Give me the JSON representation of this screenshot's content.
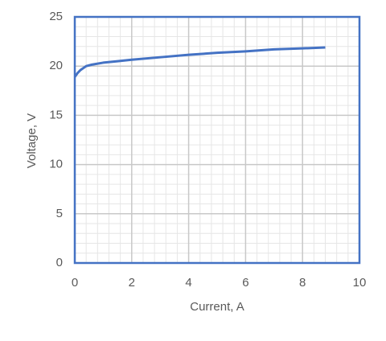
{
  "chart_data": {
    "type": "line",
    "x_label": "Current, A",
    "y_label": "Voltage, V",
    "x": [
      0,
      0.1,
      0.2,
      0.4,
      0.6,
      1,
      1.5,
      2,
      3,
      4,
      5,
      6,
      7,
      8,
      8.8
    ],
    "series": [
      {
        "name": "Voltage",
        "color": "#4472c4",
        "values": [
          18.9,
          19.3,
          19.6,
          20.0,
          20.15,
          20.35,
          20.5,
          20.65,
          20.9,
          21.15,
          21.35,
          21.5,
          21.7,
          21.8,
          21.9
        ]
      }
    ],
    "xlim": [
      0,
      10
    ],
    "xticks": [
      0,
      2,
      4,
      6,
      8,
      10
    ],
    "ylim": [
      0,
      25
    ],
    "yticks": [
      0,
      5,
      10,
      15,
      20,
      25
    ],
    "grid": true,
    "minor_grid": true,
    "frame_color": "#4472c4"
  }
}
